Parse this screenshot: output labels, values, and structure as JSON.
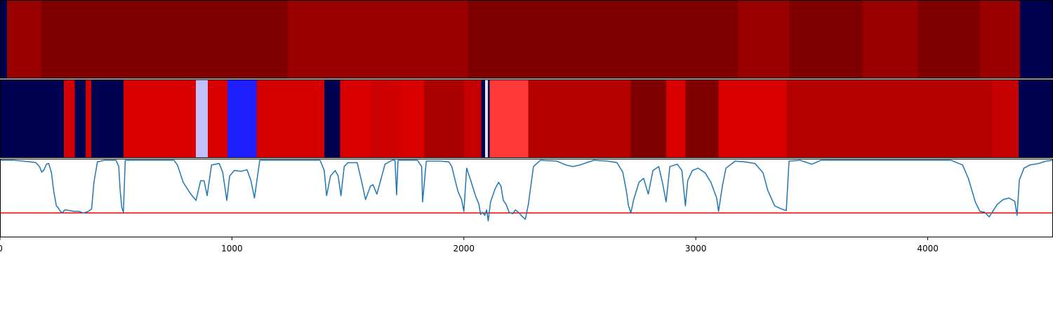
{
  "chart_data": [
    {
      "type": "heatmap",
      "title": "",
      "xlim": [
        0,
        4540
      ],
      "colormap": "seismic",
      "segments": [
        {
          "x0": 0,
          "x1": 30,
          "color": "#000050"
        },
        {
          "x0": 30,
          "x1": 178,
          "color": "#9b0000"
        },
        {
          "x0": 178,
          "x1": 1240,
          "color": "#800000"
        },
        {
          "x0": 1240,
          "x1": 2018,
          "color": "#9b0000"
        },
        {
          "x0": 2018,
          "x1": 3183,
          "color": "#800000"
        },
        {
          "x0": 3183,
          "x1": 3402,
          "color": "#9b0000"
        },
        {
          "x0": 3402,
          "x1": 3720,
          "color": "#800000"
        },
        {
          "x0": 3720,
          "x1": 3957,
          "color": "#9b0000"
        },
        {
          "x0": 3957,
          "x1": 4225,
          "color": "#800000"
        },
        {
          "x0": 4225,
          "x1": 4398,
          "color": "#9b0000"
        },
        {
          "x0": 4398,
          "x1": 4540,
          "color": "#000050"
        }
      ]
    },
    {
      "type": "heatmap",
      "title": "",
      "xlim": [
        0,
        4540
      ],
      "colormap": "seismic",
      "segments": [
        {
          "x0": 0,
          "x1": 275,
          "color": "#000050"
        },
        {
          "x0": 275,
          "x1": 322,
          "color": "#d40000"
        },
        {
          "x0": 322,
          "x1": 369,
          "color": "#000050"
        },
        {
          "x0": 369,
          "x1": 394,
          "color": "#d40000"
        },
        {
          "x0": 394,
          "x1": 532,
          "color": "#000050"
        },
        {
          "x0": 532,
          "x1": 845,
          "color": "#d90000"
        },
        {
          "x0": 845,
          "x1": 896,
          "color": "#c0c0ff"
        },
        {
          "x0": 896,
          "x1": 981,
          "color": "#d90000"
        },
        {
          "x0": 981,
          "x1": 1107,
          "color": "#2020ff"
        },
        {
          "x0": 1107,
          "x1": 1399,
          "color": "#d40000"
        },
        {
          "x0": 1399,
          "x1": 1466,
          "color": "#000050"
        },
        {
          "x0": 1466,
          "x1": 1598,
          "color": "#d90000"
        },
        {
          "x0": 1598,
          "x1": 1659,
          "color": "#cc0000"
        },
        {
          "x0": 1659,
          "x1": 1732,
          "color": "#d00000"
        },
        {
          "x0": 1732,
          "x1": 1828,
          "color": "#d90000"
        },
        {
          "x0": 1828,
          "x1": 2000,
          "color": "#aa0000"
        },
        {
          "x0": 2000,
          "x1": 2075,
          "color": "#c40000"
        },
        {
          "x0": 2075,
          "x1": 2092,
          "color": "#000050"
        },
        {
          "x0": 2092,
          "x1": 2103,
          "color": "#e0e0ff"
        },
        {
          "x0": 2103,
          "x1": 2111,
          "color": "#000050"
        },
        {
          "x0": 2111,
          "x1": 2278,
          "color": "#ff3838"
        },
        {
          "x0": 2278,
          "x1": 2720,
          "color": "#b50000"
        },
        {
          "x0": 2720,
          "x1": 2872,
          "color": "#800000"
        },
        {
          "x0": 2872,
          "x1": 2955,
          "color": "#d90000"
        },
        {
          "x0": 2955,
          "x1": 3098,
          "color": "#800000"
        },
        {
          "x0": 3098,
          "x1": 3392,
          "color": "#d90000"
        },
        {
          "x0": 3392,
          "x1": 4277,
          "color": "#b50000"
        },
        {
          "x0": 4277,
          "x1": 4392,
          "color": "#c40000"
        },
        {
          "x0": 4392,
          "x1": 4540,
          "color": "#000050"
        }
      ]
    },
    {
      "type": "line",
      "title": "",
      "xlabel": "",
      "ylabel": "",
      "xlim": [
        0,
        4540
      ],
      "ylim": [
        0,
        1
      ],
      "x_ticks": [
        {
          "value": 0,
          "label": "0"
        },
        {
          "value": 1000,
          "label": "1000"
        },
        {
          "value": 2000,
          "label": "2000"
        },
        {
          "value": 3000,
          "label": "3000"
        },
        {
          "value": 4000,
          "label": "4000"
        }
      ],
      "line_color": "#1f77b4",
      "threshold": {
        "value": 0.31,
        "color": "#ff0000"
      },
      "series": [
        {
          "values": [
            [
              0,
              0.98
            ],
            [
              60,
              0.98
            ],
            [
              100,
              0.97
            ],
            [
              130,
              0.96
            ],
            [
              155,
              0.95
            ],
            [
              170,
              0.9
            ],
            [
              180,
              0.83
            ],
            [
              190,
              0.86
            ],
            [
              200,
              0.93
            ],
            [
              210,
              0.94
            ],
            [
              222,
              0.82
            ],
            [
              232,
              0.58
            ],
            [
              243,
              0.4
            ],
            [
              250,
              0.38
            ],
            [
              258,
              0.34
            ],
            [
              268,
              0.31
            ],
            [
              280,
              0.35
            ],
            [
              300,
              0.34
            ],
            [
              320,
              0.33
            ],
            [
              340,
              0.33
            ],
            [
              360,
              0.31
            ],
            [
              380,
              0.33
            ],
            [
              395,
              0.36
            ],
            [
              405,
              0.7
            ],
            [
              420,
              0.96
            ],
            [
              450,
              0.98
            ],
            [
              500,
              0.98
            ],
            [
              512,
              0.9
            ],
            [
              518,
              0.6
            ],
            [
              525,
              0.38
            ],
            [
              532,
              0.32
            ],
            [
              540,
              0.98
            ],
            [
              560,
              0.98
            ],
            [
              700,
              0.98
            ],
            [
              750,
              0.98
            ],
            [
              765,
              0.92
            ],
            [
              790,
              0.7
            ],
            [
              820,
              0.56
            ],
            [
              845,
              0.47
            ],
            [
              865,
              0.72
            ],
            [
              880,
              0.72
            ],
            [
              893,
              0.53
            ],
            [
              912,
              0.92
            ],
            [
              945,
              0.94
            ],
            [
              960,
              0.83
            ],
            [
              978,
              0.47
            ],
            [
              990,
              0.78
            ],
            [
              1010,
              0.85
            ],
            [
              1040,
              0.84
            ],
            [
              1065,
              0.86
            ],
            [
              1082,
              0.72
            ],
            [
              1097,
              0.5
            ],
            [
              1120,
              0.98
            ],
            [
              1200,
              0.98
            ],
            [
              1300,
              0.98
            ],
            [
              1380,
              0.98
            ],
            [
              1398,
              0.85
            ],
            [
              1408,
              0.53
            ],
            [
              1425,
              0.78
            ],
            [
              1445,
              0.85
            ],
            [
              1458,
              0.78
            ],
            [
              1470,
              0.53
            ],
            [
              1484,
              0.9
            ],
            [
              1500,
              0.95
            ],
            [
              1540,
              0.95
            ],
            [
              1560,
              0.7
            ],
            [
              1576,
              0.48
            ],
            [
              1597,
              0.65
            ],
            [
              1608,
              0.67
            ],
            [
              1625,
              0.55
            ],
            [
              1660,
              0.93
            ],
            [
              1690,
              0.98
            ],
            [
              1703,
              0.98
            ],
            [
              1710,
              0.54
            ],
            [
              1716,
              0.98
            ],
            [
              1760,
              0.98
            ],
            [
              1800,
              0.98
            ],
            [
              1818,
              0.9
            ],
            [
              1822,
              0.45
            ],
            [
              1838,
              0.97
            ],
            [
              1900,
              0.97
            ],
            [
              1935,
              0.96
            ],
            [
              1948,
              0.9
            ],
            [
              1962,
              0.73
            ],
            [
              1975,
              0.58
            ],
            [
              1990,
              0.48
            ],
            [
              2000,
              0.33
            ],
            [
              2012,
              0.88
            ],
            [
              2030,
              0.72
            ],
            [
              2050,
              0.53
            ],
            [
              2065,
              0.42
            ],
            [
              2072,
              0.29
            ],
            [
              2080,
              0.32
            ],
            [
              2090,
              0.28
            ],
            [
              2098,
              0.35
            ],
            [
              2105,
              0.21
            ],
            [
              2115,
              0.45
            ],
            [
              2135,
              0.62
            ],
            [
              2150,
              0.7
            ],
            [
              2160,
              0.65
            ],
            [
              2170,
              0.47
            ],
            [
              2182,
              0.42
            ],
            [
              2195,
              0.32
            ],
            [
              2210,
              0.3
            ],
            [
              2222,
              0.35
            ],
            [
              2235,
              0.32
            ],
            [
              2250,
              0.27
            ],
            [
              2265,
              0.23
            ],
            [
              2278,
              0.42
            ],
            [
              2300,
              0.9
            ],
            [
              2330,
              0.98
            ],
            [
              2400,
              0.97
            ],
            [
              2440,
              0.92
            ],
            [
              2470,
              0.9
            ],
            [
              2500,
              0.92
            ],
            [
              2560,
              0.98
            ],
            [
              2620,
              0.97
            ],
            [
              2660,
              0.95
            ],
            [
              2685,
              0.83
            ],
            [
              2700,
              0.6
            ],
            [
              2710,
              0.4
            ],
            [
              2720,
              0.31
            ],
            [
              2732,
              0.48
            ],
            [
              2755,
              0.7
            ],
            [
              2775,
              0.75
            ],
            [
              2795,
              0.55
            ],
            [
              2815,
              0.85
            ],
            [
              2840,
              0.9
            ],
            [
              2856,
              0.7
            ],
            [
              2872,
              0.45
            ],
            [
              2888,
              0.9
            ],
            [
              2920,
              0.93
            ],
            [
              2940,
              0.85
            ],
            [
              2955,
              0.4
            ],
            [
              2965,
              0.72
            ],
            [
              2985,
              0.85
            ],
            [
              3010,
              0.88
            ],
            [
              3040,
              0.82
            ],
            [
              3065,
              0.7
            ],
            [
              3090,
              0.5
            ],
            [
              3098,
              0.33
            ],
            [
              3115,
              0.66
            ],
            [
              3130,
              0.88
            ],
            [
              3170,
              0.97
            ],
            [
              3210,
              0.96
            ],
            [
              3255,
              0.94
            ],
            [
              3290,
              0.82
            ],
            [
              3310,
              0.6
            ],
            [
              3340,
              0.4
            ],
            [
              3370,
              0.36
            ],
            [
              3390,
              0.34
            ],
            [
              3402,
              0.97
            ],
            [
              3450,
              0.98
            ],
            [
              3500,
              0.93
            ],
            [
              3540,
              0.98
            ],
            [
              3600,
              0.98
            ],
            [
              3700,
              0.98
            ],
            [
              3800,
              0.98
            ],
            [
              3900,
              0.98
            ],
            [
              3950,
              0.98
            ],
            [
              4000,
              0.98
            ],
            [
              4100,
              0.98
            ],
            [
              4150,
              0.92
            ],
            [
              4175,
              0.75
            ],
            [
              4205,
              0.45
            ],
            [
              4225,
              0.33
            ],
            [
              4245,
              0.32
            ],
            [
              4265,
              0.26
            ],
            [
              4280,
              0.33
            ],
            [
              4300,
              0.42
            ],
            [
              4325,
              0.48
            ],
            [
              4350,
              0.5
            ],
            [
              4375,
              0.46
            ],
            [
              4385,
              0.28
            ],
            [
              4395,
              0.73
            ],
            [
              4415,
              0.88
            ],
            [
              4440,
              0.92
            ],
            [
              4480,
              0.94
            ],
            [
              4510,
              0.97
            ],
            [
              4540,
              0.98
            ]
          ]
        }
      ]
    }
  ]
}
